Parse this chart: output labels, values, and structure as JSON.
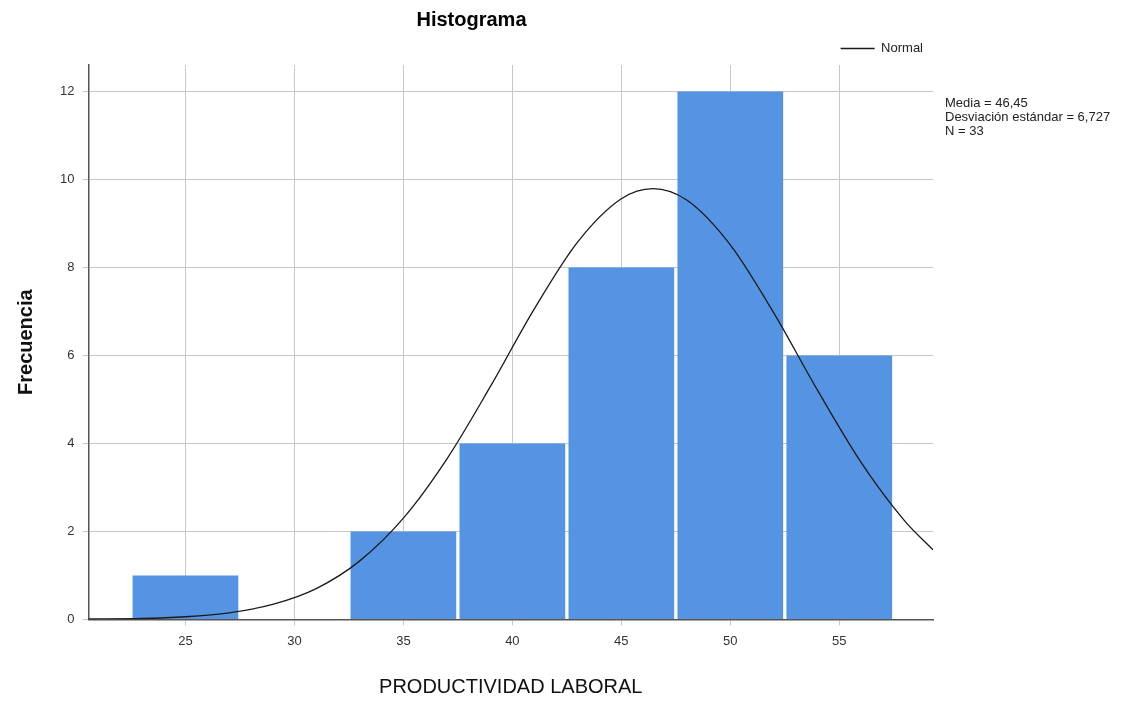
{
  "chart_data": {
    "type": "histogram",
    "title": "Histograma",
    "xlabel": "PRODUCTIVIDAD LABORAL",
    "ylabel": "Frecuencia",
    "bins": [
      22.5,
      27.5,
      32.5,
      37.5,
      42.5,
      47.5,
      52.5,
      57.5
    ],
    "values": [
      1,
      0,
      2,
      4,
      8,
      12,
      6
    ],
    "color": "#5594e2",
    "series": [
      {
        "name": "Normal",
        "type": "line",
        "color": "#1a1a1a",
        "x": [
          20.55,
          23,
          25,
          27,
          29,
          31,
          33,
          35,
          37,
          39,
          41,
          43,
          45,
          46.45,
          48,
          50,
          52,
          54,
          56,
          58,
          59.3
        ],
        "values": [
          0.01,
          0.02,
          0.06,
          0.15,
          0.34,
          0.7,
          1.33,
          2.3,
          3.65,
          5.3,
          7.05,
          8.58,
          9.56,
          9.79,
          9.53,
          8.51,
          6.96,
          5.21,
          3.57,
          2.24,
          1.58
        ]
      }
    ],
    "xlim": [
      20.55,
      59.3
    ],
    "ylim": [
      0,
      12.6
    ],
    "xticks": [
      25,
      30,
      35,
      40,
      45,
      50,
      55
    ],
    "yticks": [
      0,
      2,
      4,
      6,
      8,
      10,
      12
    ],
    "grid": true,
    "legend": "top right",
    "marker": "none",
    "annotations": [
      "Media = 46,45",
      "Desviación estándar = 6,727",
      "N = 33"
    ]
  }
}
